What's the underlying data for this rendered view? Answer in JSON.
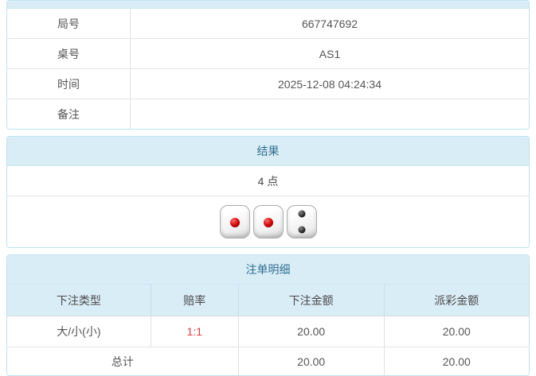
{
  "info_table": {
    "rows": [
      {
        "label": "局号",
        "value": "667747692"
      },
      {
        "label": "桌号",
        "value": "AS1"
      },
      {
        "label": "时间",
        "value": "2025-12-08 04:24:34"
      },
      {
        "label": "备注",
        "value": ""
      }
    ]
  },
  "result_panel": {
    "title": "结果",
    "points": "4 点",
    "dice": [
      1,
      1,
      2
    ]
  },
  "bets_panel": {
    "title": "注单明细",
    "columns": [
      "下注类型",
      "赔率",
      "下注金额",
      "派彩金额"
    ],
    "rows": [
      {
        "bet_type": "大/小(小)",
        "odds": "1:1",
        "bet_amount": "20.00",
        "payout_amount": "20.00"
      }
    ],
    "total": {
      "label": "总计",
      "bet_amount": "20.00",
      "payout_amount": "20.00"
    }
  },
  "colors": {
    "panel_header_bg": "#d9edf7",
    "panel_header_text": "#31708f",
    "panel_border": "#bfe3ef",
    "row_border": "#e4e4e4",
    "odds_red": "#e23b3b",
    "body_text": "#555555",
    "die_pip_red": "#cc0000",
    "die_pip_black": "#111111"
  }
}
